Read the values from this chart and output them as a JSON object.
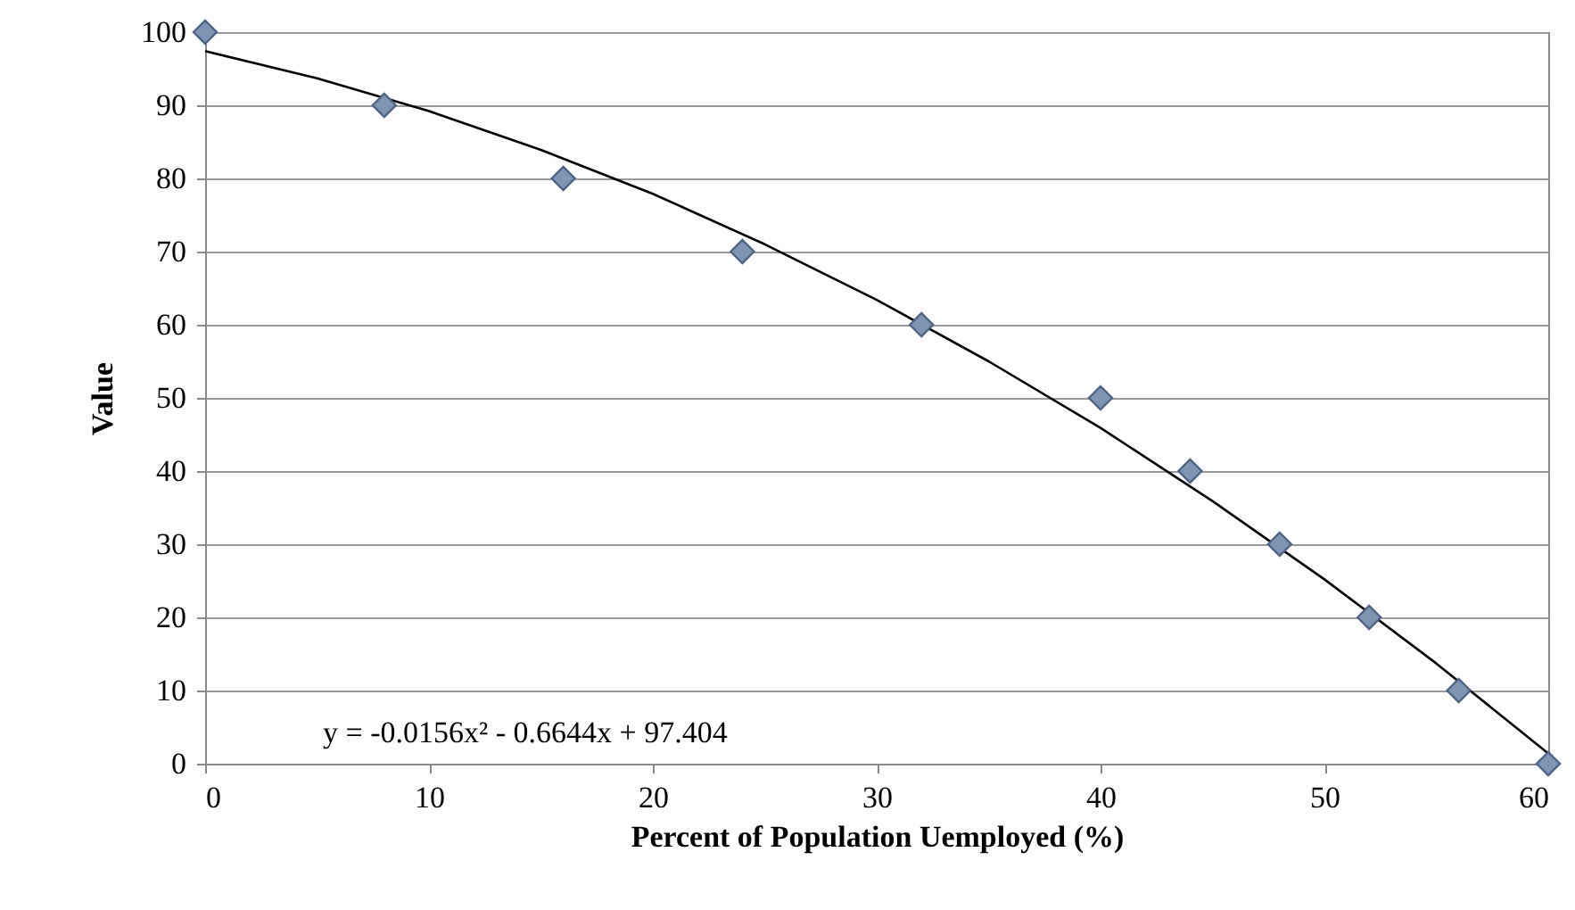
{
  "chart_data": {
    "type": "scatter",
    "xlabel": "Percent of Population Uemployed (%)",
    "ylabel": "Value",
    "series": [
      {
        "type": "line",
        "color": "#000000",
        "marker": "none",
        "x": [
          0,
          5,
          10,
          15,
          20,
          25,
          30,
          35,
          40,
          45,
          50,
          55,
          60
        ],
        "values": [
          97.4,
          93.7,
          89.2,
          83.9,
          77.9,
          71.0,
          63.4,
          55.0,
          45.9,
          35.9,
          25.2,
          13.7,
          1.4
        ]
      },
      {
        "color": "#7f93b3",
        "marker": "diamond",
        "x": [
          0,
          8,
          16,
          24,
          32,
          40,
          44,
          48,
          52,
          56,
          60
        ],
        "values": [
          100,
          90,
          80,
          70,
          60,
          50,
          40,
          30,
          20,
          10,
          0
        ]
      }
    ],
    "xlim": [
      0,
      60
    ],
    "xticks": [
      0,
      10,
      20,
      30,
      40,
      50,
      60
    ],
    "ylim": [
      0,
      100
    ],
    "yticks": [
      0,
      10,
      20,
      30,
      40,
      50,
      60,
      70,
      80,
      90,
      100
    ],
    "grid": "y",
    "annotations": [
      "y = -0.0156x² - 0.6644x + 97.404"
    ]
  }
}
